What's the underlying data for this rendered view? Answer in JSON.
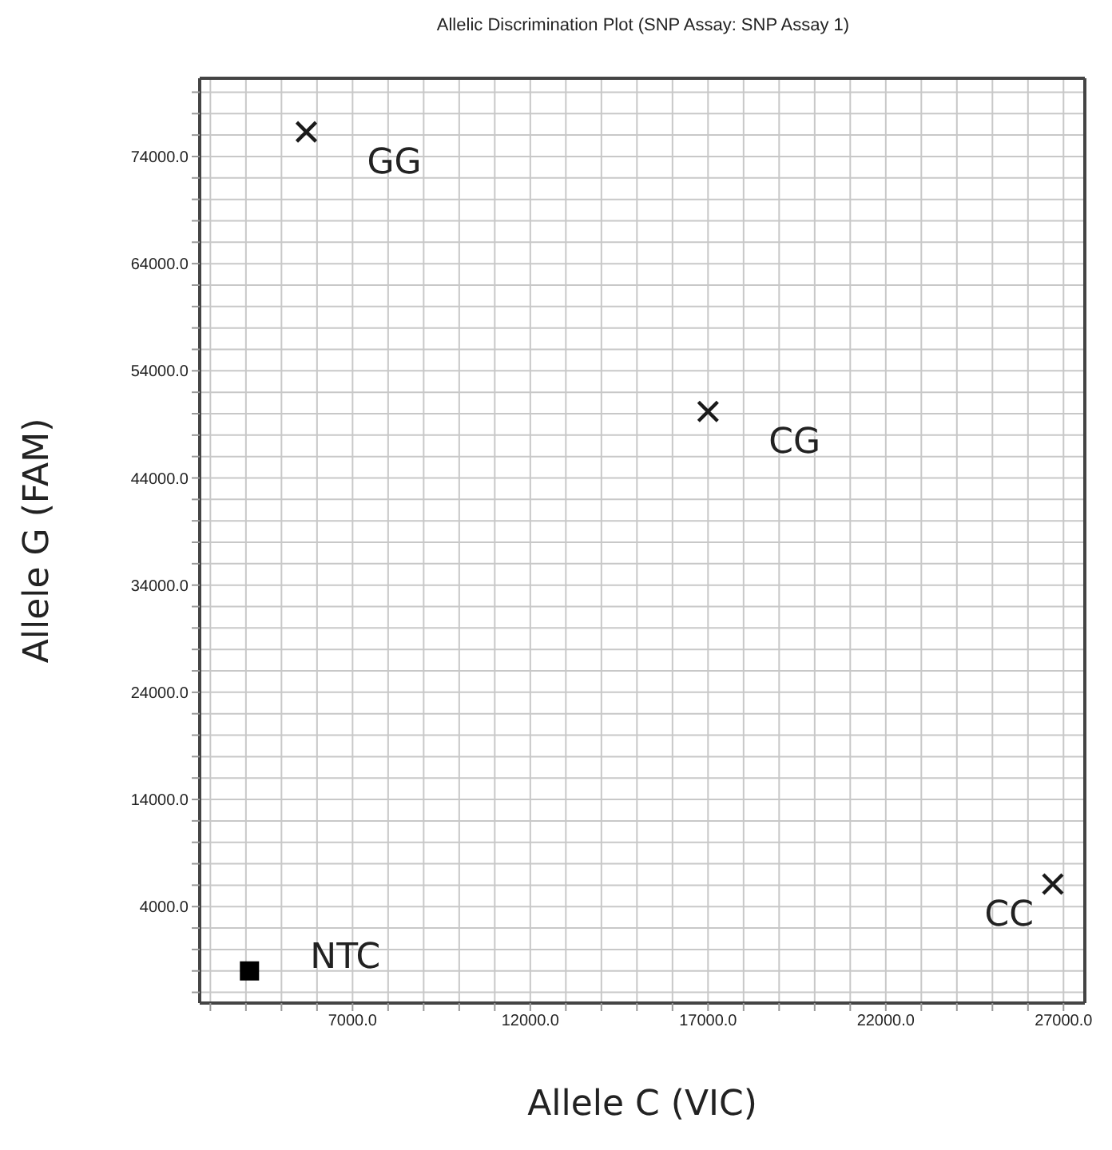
{
  "chart_data": {
    "type": "scatter",
    "title": "Allelic Discrimination Plot (SNP Assay: SNP Assay 1)",
    "xlabel": "Allele C (VIC)",
    "ylabel": "Allele G (FAM)",
    "series": [
      {
        "color": "#1a1a1a",
        "marker": "cross",
        "x": [
          5700,
          17000,
          26700
        ],
        "values": [
          76300,
          50200,
          6100
        ]
      },
      {
        "color": "#000000",
        "marker": "square",
        "x": [
          4100
        ],
        "values": [
          -2000
        ]
      }
    ],
    "annotations": [
      {
        "text": "GG",
        "x": 5700,
        "y": 76300
      },
      {
        "text": "CG",
        "x": 17000,
        "y": 50200
      },
      {
        "text": "CC",
        "x": 26700,
        "y": 6100
      },
      {
        "text": "NTC",
        "x": 4100,
        "y": -2000
      }
    ],
    "xlim": [
      2700,
      27600
    ],
    "xticks": [
      {
        "value": 3000,
        "label": null
      },
      {
        "value": 4000,
        "label": null
      },
      {
        "value": 5000,
        "label": null
      },
      {
        "value": 6000,
        "label": null
      },
      {
        "value": 7000,
        "label": "7000.0"
      },
      {
        "value": 8000,
        "label": null
      },
      {
        "value": 9000,
        "label": null
      },
      {
        "value": 10000,
        "label": null
      },
      {
        "value": 11000,
        "label": null
      },
      {
        "value": 12000,
        "label": "12000.0"
      },
      {
        "value": 13000,
        "label": null
      },
      {
        "value": 14000,
        "label": null
      },
      {
        "value": 15000,
        "label": null
      },
      {
        "value": 16000,
        "label": null
      },
      {
        "value": 17000,
        "label": "17000.0"
      },
      {
        "value": 18000,
        "label": null
      },
      {
        "value": 19000,
        "label": null
      },
      {
        "value": 20000,
        "label": null
      },
      {
        "value": 21000,
        "label": null
      },
      {
        "value": 22000,
        "label": "22000.0"
      },
      {
        "value": 23000,
        "label": null
      },
      {
        "value": 24000,
        "label": null
      },
      {
        "value": 25000,
        "label": null
      },
      {
        "value": 26000,
        "label": null
      },
      {
        "value": 27000,
        "label": "27000.0"
      }
    ],
    "ylim": [
      -5000,
      81300
    ],
    "yticks": [
      {
        "value": -4000,
        "label": null
      },
      {
        "value": -2000,
        "label": null
      },
      {
        "value": 0,
        "label": null
      },
      {
        "value": 2000,
        "label": null
      },
      {
        "value": 4000,
        "label": "4000.0"
      },
      {
        "value": 6000,
        "label": null
      },
      {
        "value": 8000,
        "label": null
      },
      {
        "value": 10000,
        "label": null
      },
      {
        "value": 12000,
        "label": null
      },
      {
        "value": 14000,
        "label": "14000.0"
      },
      {
        "value": 16000,
        "label": null
      },
      {
        "value": 18000,
        "label": null
      },
      {
        "value": 20000,
        "label": null
      },
      {
        "value": 22000,
        "label": null
      },
      {
        "value": 24000,
        "label": "24000.0"
      },
      {
        "value": 26000,
        "label": null
      },
      {
        "value": 28000,
        "label": null
      },
      {
        "value": 30000,
        "label": null
      },
      {
        "value": 32000,
        "label": null
      },
      {
        "value": 34000,
        "label": "34000.0"
      },
      {
        "value": 36000,
        "label": null
      },
      {
        "value": 38000,
        "label": null
      },
      {
        "value": 40000,
        "label": null
      },
      {
        "value": 42000,
        "label": null
      },
      {
        "value": 44000,
        "label": "44000.0"
      },
      {
        "value": 46000,
        "label": null
      },
      {
        "value": 48000,
        "label": null
      },
      {
        "value": 50000,
        "label": null
      },
      {
        "value": 52000,
        "label": null
      },
      {
        "value": 54000,
        "label": "54000.0"
      },
      {
        "value": 56000,
        "label": null
      },
      {
        "value": 58000,
        "label": null
      },
      {
        "value": 60000,
        "label": null
      },
      {
        "value": 62000,
        "label": null
      },
      {
        "value": 64000,
        "label": "64000.0"
      },
      {
        "value": 66000,
        "label": null
      },
      {
        "value": 68000,
        "label": null
      },
      {
        "value": 70000,
        "label": null
      },
      {
        "value": 72000,
        "label": null
      },
      {
        "value": 74000,
        "label": "74000.0"
      },
      {
        "value": 76000,
        "label": null
      },
      {
        "value": 78000,
        "label": null
      },
      {
        "value": 80000,
        "label": null
      }
    ],
    "grid": true,
    "legend": false
  }
}
